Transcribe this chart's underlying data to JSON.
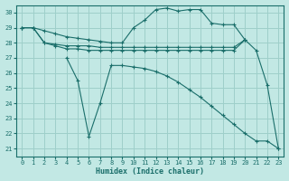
{
  "xlabel": "Humidex (Indice chaleur)",
  "bg_color": "#c2e8e4",
  "grid_color": "#9ecfca",
  "line_color": "#1a6e6a",
  "xlim": [
    -0.5,
    23.5
  ],
  "ylim": [
    20.5,
    30.5
  ],
  "xticks": [
    0,
    1,
    2,
    3,
    4,
    5,
    6,
    7,
    8,
    9,
    10,
    11,
    12,
    13,
    14,
    15,
    16,
    17,
    18,
    19,
    20,
    21,
    22,
    23
  ],
  "yticks": [
    21,
    22,
    23,
    24,
    25,
    26,
    27,
    28,
    29,
    30
  ],
  "line1": {
    "x": [
      0,
      1,
      2,
      3,
      4,
      5,
      6,
      7,
      8,
      9,
      10,
      11,
      12,
      13,
      14,
      15,
      16,
      17,
      18,
      19,
      20,
      21,
      22,
      23
    ],
    "y": [
      29,
      29,
      28.8,
      28.6,
      28.4,
      28.3,
      28.2,
      28.1,
      28.0,
      28.0,
      29.0,
      29.5,
      30.2,
      30.3,
      30.1,
      30.2,
      30.2,
      29.3,
      29.2,
      29.2,
      28.2,
      27.5,
      25.2,
      21.0
    ]
  },
  "line2": {
    "x": [
      0,
      1,
      2,
      3,
      4,
      5,
      6,
      7,
      8,
      9,
      10,
      11,
      12,
      13,
      14,
      15,
      16,
      17,
      18,
      19,
      20
    ],
    "y": [
      29,
      29,
      28.0,
      27.9,
      27.8,
      27.8,
      27.8,
      27.7,
      27.7,
      27.7,
      27.7,
      27.7,
      27.7,
      27.7,
      27.7,
      27.7,
      27.7,
      27.7,
      27.7,
      27.7,
      28.2
    ]
  },
  "line3": {
    "x": [
      0,
      1,
      2,
      3,
      4,
      5,
      6,
      7,
      8,
      9,
      10,
      11,
      12,
      13,
      14,
      15,
      16,
      17,
      18,
      19,
      20
    ],
    "y": [
      29,
      29,
      28.0,
      27.8,
      27.6,
      27.6,
      27.5,
      27.5,
      27.5,
      27.5,
      27.5,
      27.5,
      27.5,
      27.5,
      27.5,
      27.5,
      27.5,
      27.5,
      27.5,
      27.5,
      28.2
    ]
  },
  "line4": {
    "x": [
      4,
      5,
      6,
      7,
      8,
      9,
      10,
      11,
      12,
      13,
      14,
      15,
      16,
      17,
      18,
      19,
      20,
      21,
      22,
      23
    ],
    "y": [
      27.0,
      25.5,
      21.8,
      24.0,
      26.5,
      26.5,
      26.4,
      26.3,
      26.1,
      25.8,
      25.4,
      24.9,
      24.4,
      23.8,
      23.2,
      22.6,
      22.0,
      21.5,
      21.5,
      21.0
    ]
  }
}
